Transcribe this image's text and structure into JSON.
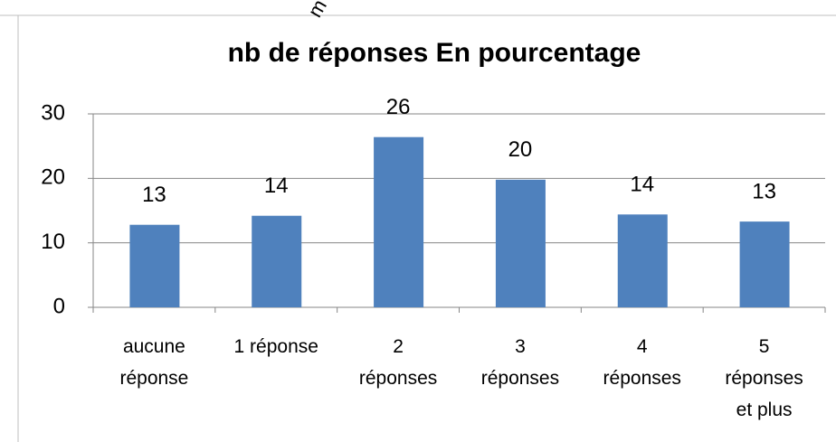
{
  "chart_data": {
    "type": "bar",
    "title": "nb de réponses  En pourcentage",
    "annotation": "m",
    "categories": [
      [
        "aucune",
        "réponse"
      ],
      [
        "1 réponse"
      ],
      [
        "2",
        "réponses"
      ],
      [
        "3",
        "réponses"
      ],
      [
        "4",
        "réponses"
      ],
      [
        "5",
        "réponses",
        "et plus"
      ]
    ],
    "values": [
      12.8,
      14.2,
      26.4,
      19.8,
      14.4,
      13.3
    ],
    "value_labels": [
      "13",
      "14",
      "26",
      "20",
      "14",
      "13"
    ],
    "color": "#4f81bd",
    "ylim": [
      0,
      30
    ],
    "yticks": [
      0,
      10,
      20,
      30
    ],
    "grid": true
  }
}
